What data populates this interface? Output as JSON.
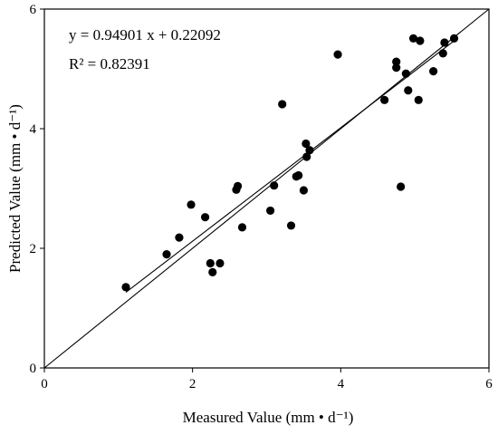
{
  "chart_data": {
    "type": "scatter",
    "xlabel": "Measured Value (mm • d⁻¹)",
    "ylabel": "Predicted Value (mm • d⁻¹)",
    "xlim": [
      0,
      6
    ],
    "ylim": [
      0,
      6
    ],
    "x_ticks": [
      "0",
      "2",
      "4",
      "6"
    ],
    "y_ticks": [
      "0",
      "2",
      "4",
      "6"
    ],
    "grid": false,
    "annotations": {
      "equation": "y = 0.94901 x + 0.22092",
      "r_squared": "R² = 0.82391"
    },
    "fit_line": {
      "slope": 0.94901,
      "intercept": 0.22092,
      "x_range": [
        1.1,
        5.55
      ]
    },
    "reference_line": {
      "slope": 1,
      "intercept": 0,
      "x_range": [
        0,
        6
      ]
    },
    "series": [
      {
        "points": [
          {
            "x": 1.1,
            "y": 1.35
          },
          {
            "x": 1.65,
            "y": 1.9
          },
          {
            "x": 1.82,
            "y": 2.18
          },
          {
            "x": 1.98,
            "y": 2.73
          },
          {
            "x": 2.17,
            "y": 2.52
          },
          {
            "x": 2.24,
            "y": 1.75
          },
          {
            "x": 2.27,
            "y": 1.6
          },
          {
            "x": 2.37,
            "y": 1.75
          },
          {
            "x": 2.59,
            "y": 2.98
          },
          {
            "x": 2.61,
            "y": 3.04
          },
          {
            "x": 2.67,
            "y": 2.35
          },
          {
            "x": 3.05,
            "y": 2.63
          },
          {
            "x": 3.1,
            "y": 3.05
          },
          {
            "x": 3.21,
            "y": 4.41
          },
          {
            "x": 3.33,
            "y": 2.38
          },
          {
            "x": 3.4,
            "y": 3.2
          },
          {
            "x": 3.43,
            "y": 3.22
          },
          {
            "x": 3.5,
            "y": 2.97
          },
          {
            "x": 3.53,
            "y": 3.75
          },
          {
            "x": 3.54,
            "y": 3.53
          },
          {
            "x": 3.58,
            "y": 3.64
          },
          {
            "x": 3.96,
            "y": 5.24
          },
          {
            "x": 4.59,
            "y": 4.48
          },
          {
            "x": 4.75,
            "y": 5.12
          },
          {
            "x": 4.75,
            "y": 5.02
          },
          {
            "x": 4.81,
            "y": 3.03
          },
          {
            "x": 4.88,
            "y": 4.92
          },
          {
            "x": 4.91,
            "y": 4.64
          },
          {
            "x": 4.98,
            "y": 5.51
          },
          {
            "x": 5.05,
            "y": 4.48
          },
          {
            "x": 5.07,
            "y": 5.47
          },
          {
            "x": 5.25,
            "y": 4.96
          },
          {
            "x": 5.38,
            "y": 5.26
          },
          {
            "x": 5.4,
            "y": 5.44
          },
          {
            "x": 5.53,
            "y": 5.51
          }
        ]
      }
    ]
  }
}
